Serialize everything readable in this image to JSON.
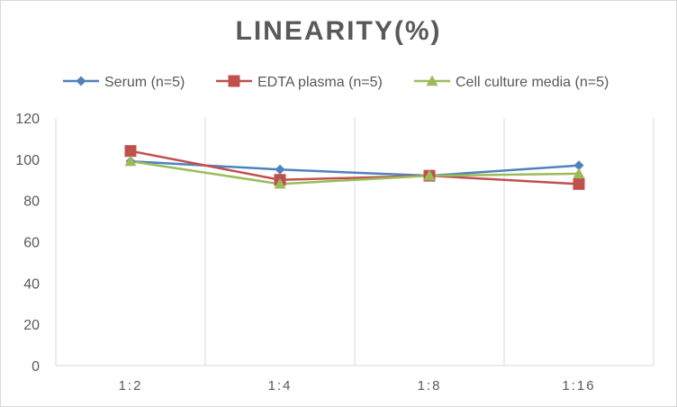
{
  "chart_data": {
    "type": "line",
    "title": "LINEARITY(%)",
    "xlabel": "",
    "ylabel": "",
    "categories": [
      "1:2",
      "1:4",
      "1:8",
      "1:16"
    ],
    "ylim": [
      0,
      120
    ],
    "yticks": [
      0,
      20,
      40,
      60,
      80,
      100,
      120
    ],
    "grid": "vertical",
    "legend_position": "top",
    "series": [
      {
        "name": "Serum (n=5)",
        "color": "#4f81bd",
        "marker": "diamond",
        "values": [
          99,
          95,
          92,
          97
        ]
      },
      {
        "name": "EDTA plasma (n=5)",
        "color": "#c0504d",
        "marker": "square",
        "values": [
          104,
          90,
          92,
          88
        ]
      },
      {
        "name": "Cell culture media (n=5)",
        "color": "#9bbb59",
        "marker": "triangle",
        "values": [
          99,
          88,
          92,
          93
        ]
      }
    ]
  }
}
